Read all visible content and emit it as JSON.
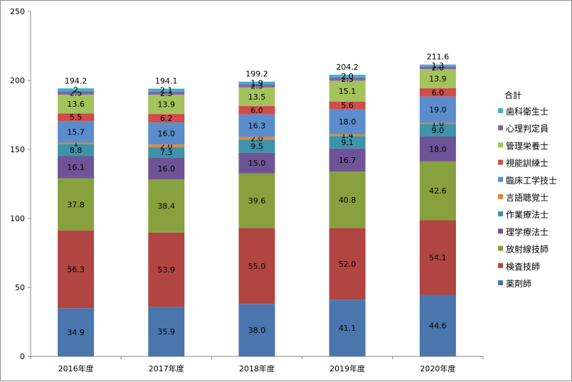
{
  "chart_data": {
    "type": "bar",
    "stacked": true,
    "title": "",
    "xlabel": "",
    "ylabel": "",
    "ylim": [
      0,
      250
    ],
    "yticks": [
      0,
      50,
      100,
      150,
      200,
      250
    ],
    "grid": false,
    "legend_position": "right",
    "legend_title": "合計",
    "categories": [
      "2016年度",
      "2017年度",
      "2018年度",
      "2019年度",
      "2020年度"
    ],
    "totals": [
      "194.2",
      "194.1",
      "199.2",
      "204.2",
      "211.6"
    ],
    "series": [
      {
        "name": "薬剤師",
        "color": "#4a76ad",
        "values": [
          34.9,
          35.9,
          38.0,
          41.1,
          44.6
        ],
        "labels": [
          "34.9",
          "35.9",
          "38.0",
          "41.1",
          "44.6"
        ]
      },
      {
        "name": "検査技師",
        "color": "#b04542",
        "values": [
          56.3,
          53.9,
          55.0,
          52.0,
          54.1
        ],
        "labels": [
          "56.3",
          "53.9",
          "55.0",
          "52.0",
          "54.1"
        ]
      },
      {
        "name": "放射線技師",
        "color": "#87a13f",
        "values": [
          37.8,
          38.4,
          39.6,
          40.8,
          42.6
        ],
        "labels": [
          "37.8",
          "38.4",
          "39.6",
          "40.8",
          "42.6"
        ]
      },
      {
        "name": "理学療法士",
        "color": "#6e5497",
        "values": [
          16.1,
          16.0,
          15.0,
          16.7,
          18.0
        ],
        "labels": [
          "16.1",
          "16.0",
          "15.0",
          "16.7",
          "18.0"
        ]
      },
      {
        "name": "作業療法士",
        "color": "#3d93a9",
        "values": [
          8.8,
          7.3,
          9.5,
          9.1,
          9.0
        ],
        "labels": [
          "8.8",
          "7.3",
          "9.5",
          "9.1",
          "9.0"
        ]
      },
      {
        "name": "言語聴覚士",
        "color": "#e0883a",
        "values": [
          1.0,
          2.0,
          2.0,
          1.4,
          1.0
        ],
        "labels": [
          "1",
          "2.0",
          "2.0",
          "1.4",
          "1.0"
        ]
      },
      {
        "name": "臨床工学技士",
        "color": "#5b8dcd",
        "values": [
          15.7,
          16.0,
          16.3,
          18.0,
          19.0
        ],
        "labels": [
          "15.7",
          "16.0",
          "16.3",
          "18.0",
          "19.0"
        ]
      },
      {
        "name": "視能訓練士",
        "color": "#cf4d4a",
        "values": [
          5.5,
          6.2,
          6.0,
          5.6,
          6.0
        ],
        "labels": [
          "5.5",
          "6.2",
          "6.0",
          "5.6",
          "6.0"
        ]
      },
      {
        "name": "管理栄養士",
        "color": "#a3c35c",
        "values": [
          13.6,
          13.9,
          13.5,
          15.1,
          13.9
        ],
        "labels": [
          "13.6",
          "13.9",
          "13.5",
          "15.1",
          "13.9"
        ]
      },
      {
        "name": "心理判定員",
        "color": "#8164a8",
        "values": [
          2.5,
          2.3,
          2.3,
          2.3,
          2.0
        ],
        "labels": [
          "2.5",
          "2.3",
          "2.3",
          "2.3",
          "2.0"
        ]
      },
      {
        "name": "歯科衛生士",
        "color": "#40b1c9",
        "values": [
          2.0,
          2.1,
          1.9,
          2.0,
          1.3
        ],
        "labels": [
          "2",
          "2.1",
          "1.9",
          "2.0",
          "1.3"
        ]
      }
    ]
  }
}
